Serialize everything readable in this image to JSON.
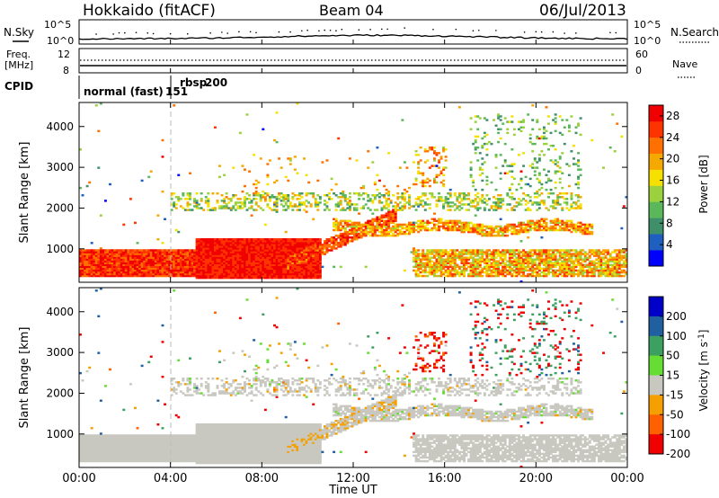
{
  "header": {
    "title": "Hokkaido (fitACF)",
    "beam": "Beam 04",
    "date": "06/Jul/2013"
  },
  "top_panels": {
    "nsky_label": "N.Sky",
    "nsearch_label": "N.Search",
    "count_tick_hi": "10^5",
    "count_tick_lo": "10^0",
    "freq_label_1": "Freq.",
    "freq_label_2": "[MHz]",
    "freq_tick_hi": "12",
    "freq_tick_lo": "8",
    "nave_tick_hi": "60",
    "nave_tick_lo": "0",
    "nave_label": "Nave",
    "cpid_label": "CPID",
    "cpid_1": "normal (fast)",
    "cpid_2": "151",
    "cpid_3": "rbsp",
    "cpid_4": "200"
  },
  "chart_data": [
    {
      "type": "heatmap",
      "title": "",
      "xlabel": "",
      "ylabel": "Slant Range [km]",
      "x_ticks": [
        "00:00",
        "04:00",
        "08:00",
        "12:00",
        "16:00",
        "20:00",
        "00:00"
      ],
      "xlim_hours": [
        0,
        24
      ],
      "y_ticks": [
        1000,
        2000,
        3000,
        4000
      ],
      "ylim": [
        180,
        4590
      ],
      "colorbar": {
        "label": "Power [dB]",
        "ticks": [
          "4",
          "8",
          "12",
          "16",
          "20",
          "24",
          "28"
        ],
        "range": [
          0,
          30
        ],
        "colors": [
          "#0000ff",
          "#1f5fbf",
          "#3f8f6a",
          "#5ab85a",
          "#9bd13c",
          "#f5e000",
          "#f5a800",
          "#ff7000",
          "#ff3300",
          "#f00000"
        ]
      },
      "dominant_echo_bands": [
        {
          "t_start": 0,
          "t_end": 10.5,
          "range_min": 300,
          "range_max": 900,
          "power_db": 28
        },
        {
          "t_start": 10.5,
          "t_end": 13.5,
          "range_min": 1000,
          "range_max": 1700,
          "power_db": 26
        },
        {
          "t_start": 13.5,
          "t_end": 22,
          "range_min": 1300,
          "range_max": 1700,
          "power_db": 20
        },
        {
          "t_start": 14.5,
          "t_end": 24,
          "range_min": 300,
          "range_max": 900,
          "power_db": 24
        }
      ]
    },
    {
      "type": "heatmap",
      "title": "",
      "xlabel": "Time UT",
      "ylabel": "Slant Range [km]",
      "x_ticks": [
        "00:00",
        "04:00",
        "08:00",
        "12:00",
        "16:00",
        "20:00",
        "00:00"
      ],
      "xlim_hours": [
        0,
        24
      ],
      "y_ticks": [
        1000,
        2000,
        3000,
        4000
      ],
      "ylim": [
        180,
        4590
      ],
      "colorbar": {
        "label": "Velocity [m s^-1]",
        "ticks": [
          "200",
          "100",
          "50",
          "15",
          "-15",
          "-50",
          "-100",
          "-200"
        ],
        "range": [
          -250,
          250
        ],
        "colors": [
          "#0000c8",
          "#2060a0",
          "#3ca060",
          "#66dd33",
          "#c8c8c0",
          "#f5a000",
          "#ff6000",
          "#f00000"
        ]
      },
      "ground_scatter_color": "#c8c8c0"
    }
  ],
  "colors": {
    "axis": "#000000",
    "dashed_marker": "#bbbbbb",
    "background": "#ffffff"
  }
}
